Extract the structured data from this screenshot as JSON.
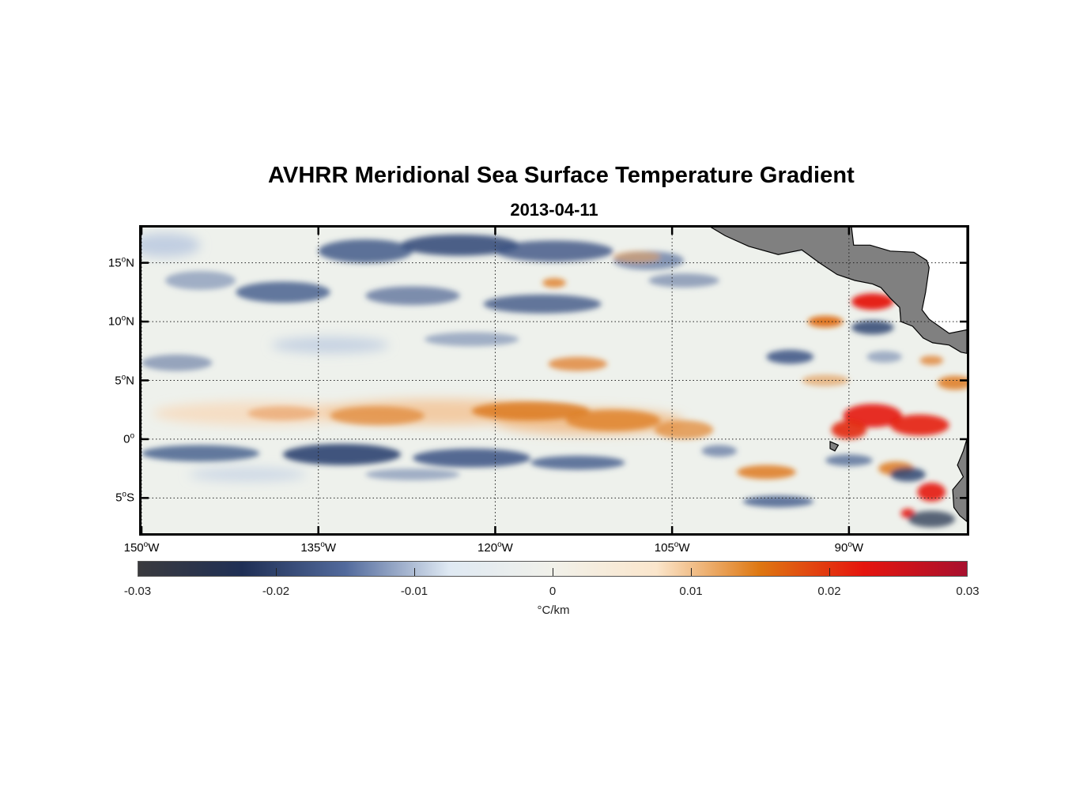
{
  "title": "AVHRR Meridional Sea Surface Temperature Gradient",
  "subtitle": "2013-04-11",
  "map": {
    "lat_ticks": [
      {
        "value": 15,
        "text": "15",
        "hemi": "N"
      },
      {
        "value": 10,
        "text": "10",
        "hemi": "N"
      },
      {
        "value": 5,
        "text": "5",
        "hemi": "N"
      },
      {
        "value": 0,
        "text": "0",
        "hemi": ""
      },
      {
        "value": -5,
        "text": "5",
        "hemi": "S"
      }
    ],
    "lon_ticks": [
      {
        "value": -150,
        "text": "150",
        "hemi": "W"
      },
      {
        "value": -135,
        "text": "135",
        "hemi": "W"
      },
      {
        "value": -120,
        "text": "120",
        "hemi": "W"
      },
      {
        "value": -105,
        "text": "105",
        "hemi": "W"
      },
      {
        "value": -90,
        "text": "90",
        "hemi": "W"
      }
    ],
    "lat_range": [
      -8,
      18
    ],
    "lon_range": [
      -150,
      -80
    ],
    "grid": "dotted",
    "land_color": "#808080"
  },
  "colorbar": {
    "range": [
      -0.03,
      0.03
    ],
    "ticks": [
      "-0.03",
      "-0.02",
      "-0.01",
      "0",
      "0.01",
      "0.02",
      "0.03"
    ],
    "unit": "°C/km",
    "colors": [
      "#3a3a3e",
      "#1f2f55",
      "#526a9c",
      "#dfe9f3",
      "#f1f1ea",
      "#fbe6cc",
      "#de7711",
      "#e5150e",
      "#a8102e"
    ]
  }
}
